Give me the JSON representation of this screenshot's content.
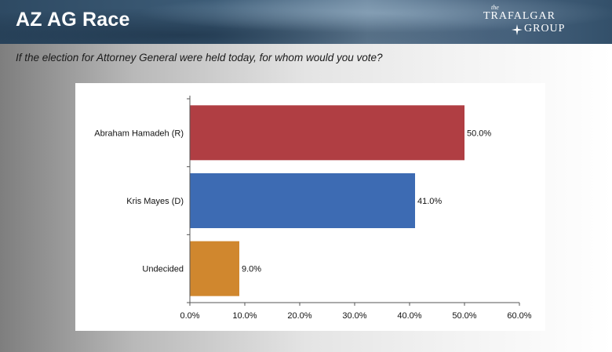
{
  "header": {
    "title": "AZ AG Race",
    "logo": {
      "the": "the",
      "line1": "TRAFALGAR",
      "line2": "GROUP"
    }
  },
  "question": "If the election for Attorney General were held today, for whom would you vote?",
  "colors": {
    "republican": "#b03e43",
    "democrat": "#3d6bb3",
    "undecided": "#d0872e"
  },
  "chart_data": {
    "type": "bar",
    "orientation": "horizontal",
    "title": "",
    "categories": [
      "Abraham Hamadeh (R)",
      "Kris Mayes (D)",
      "Undecided"
    ],
    "values": [
      50.0,
      41.0,
      9.0
    ],
    "value_labels": [
      "50.0%",
      "41.0%",
      "9.0%"
    ],
    "bar_colors": [
      "#b03e43",
      "#3d6bb3",
      "#d0872e"
    ],
    "xlim": [
      0,
      60
    ],
    "xticks": [
      0,
      10,
      20,
      30,
      40,
      50,
      60
    ],
    "xtick_labels": [
      "0.0%",
      "10.0%",
      "20.0%",
      "30.0%",
      "40.0%",
      "50.0%",
      "60.0%"
    ],
    "xlabel": "",
    "ylabel": "",
    "grid": false,
    "legend": "none"
  }
}
